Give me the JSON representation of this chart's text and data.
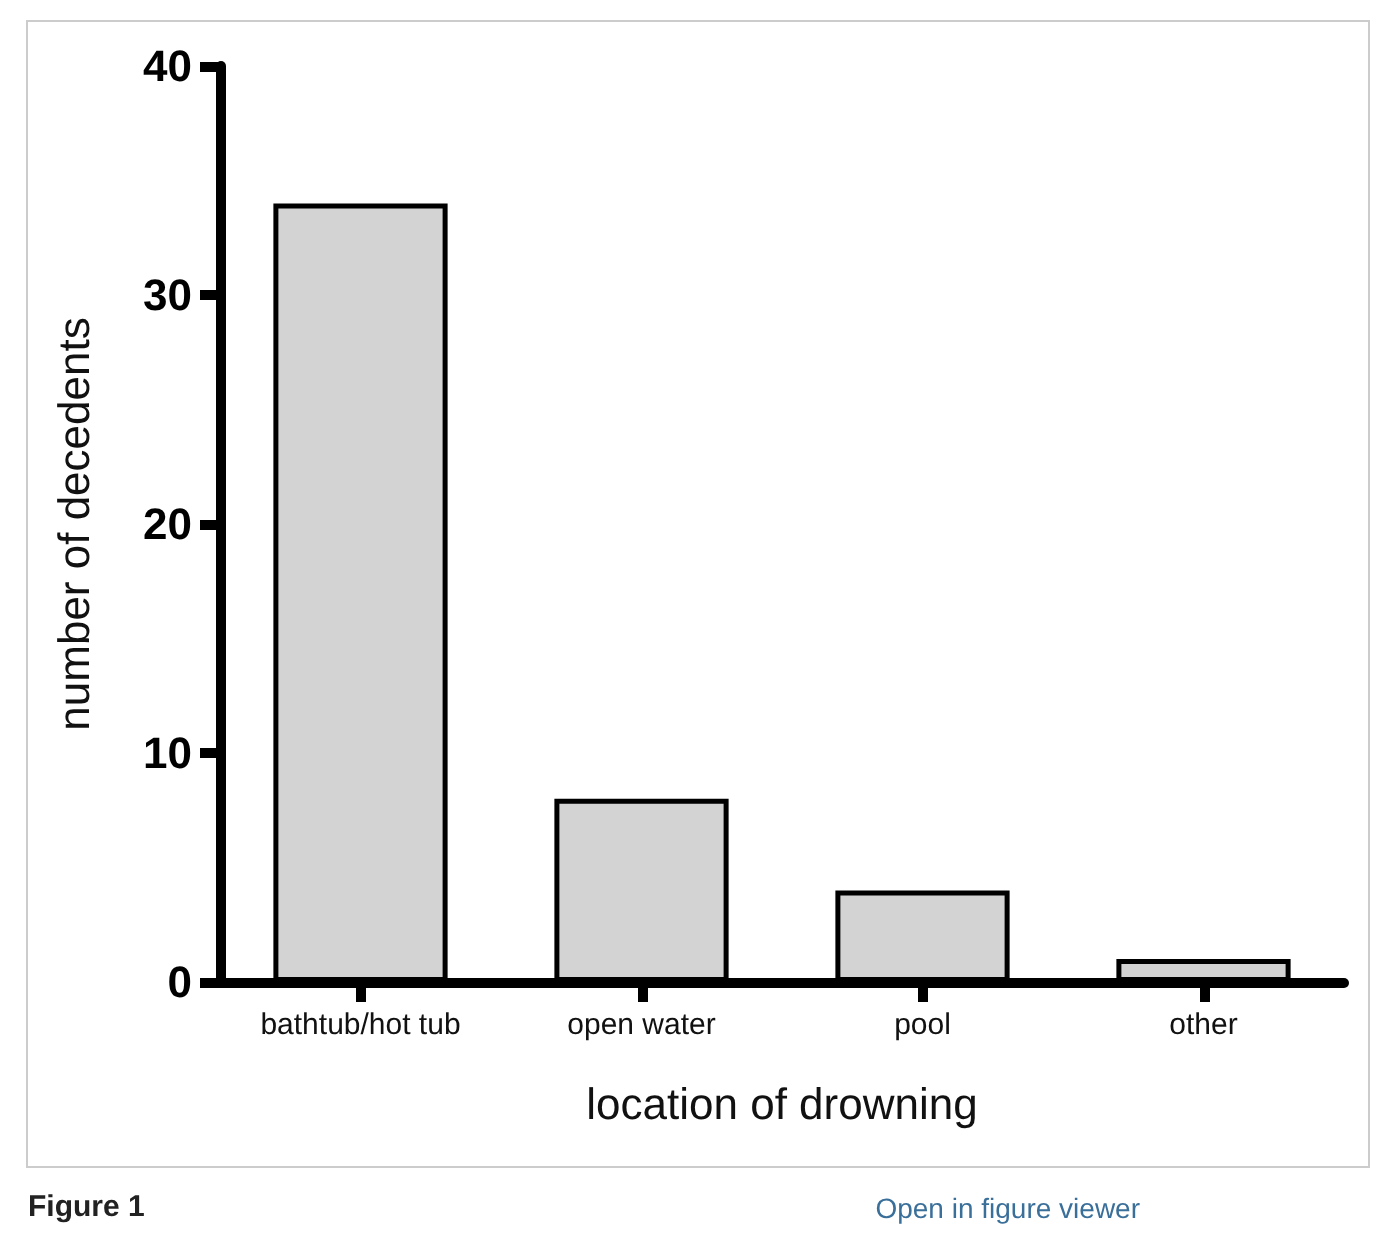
{
  "chart_data": {
    "type": "bar",
    "xlabel": "location of drowning",
    "ylabel": "number of decedents",
    "categories": [
      "bathtub/hot tub",
      "open water",
      "pool",
      "other"
    ],
    "values": [
      34,
      8,
      4,
      1
    ],
    "color": "#d3d3d3",
    "ylim": [
      0,
      40
    ],
    "yticks": [
      0,
      10,
      20,
      30,
      40
    ],
    "grid": false,
    "annotations": [
      "Figure 1",
      "Open in figure viewer"
    ]
  }
}
